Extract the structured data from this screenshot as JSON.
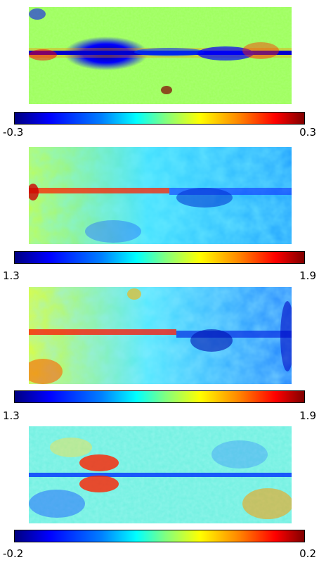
{
  "panels": [
    {
      "colorbar": {
        "min": "-0.3",
        "max": "0.3"
      }
    },
    {
      "colorbar": {
        "min": "1.3",
        "max": "1.9"
      }
    },
    {
      "colorbar": {
        "min": "1.3",
        "max": "1.9"
      }
    },
    {
      "colorbar": {
        "min": "-0.2",
        "max": "0.2"
      }
    }
  ]
}
